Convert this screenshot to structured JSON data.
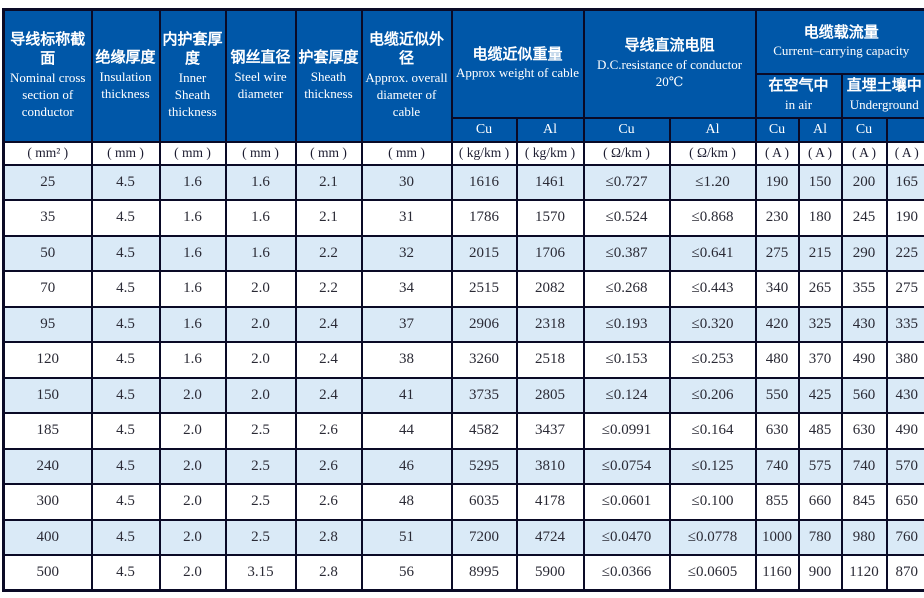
{
  "colors": {
    "header_bg": "#0057a8",
    "header_text": "#ffffff",
    "border": "#0a0a26",
    "row_alt_bg": "#daeaf7",
    "row_bg": "#ffffff",
    "data_text": "#2a2a35"
  },
  "table": {
    "header": {
      "simple_columns": [
        {
          "zh": "导线标称截面",
          "en": "Nominal cross section of conductor"
        },
        {
          "zh": "绝缘厚度",
          "en": "Insulation thickness"
        },
        {
          "zh": "内护套厚度",
          "en": "Inner Sheath thickness"
        },
        {
          "zh": "钢丝直径",
          "en": "Steel wire diameter"
        },
        {
          "zh": "护套厚度",
          "en": "Sheath thickness"
        },
        {
          "zh": "电缆近似外径",
          "en": "Approx. overall diameter of cable"
        }
      ],
      "weight_group": {
        "zh": "电缆近似重量",
        "en": "Approx weight of cable",
        "sub": [
          "Cu",
          "Al"
        ]
      },
      "resistance_group": {
        "zh": "导线直流电阻",
        "en": "D.C.resistance of conductor",
        "temp": "20℃",
        "sub": [
          "Cu",
          "Al"
        ]
      },
      "capacity_group": {
        "zh": "电缆载流量",
        "en": "Current–carrying capacity",
        "air": {
          "zh": "在空气中",
          "en": "in air"
        },
        "underground": {
          "zh": "直埋土壤中",
          "en": "Underground"
        },
        "sub": [
          "Cu",
          "Al",
          "Cu",
          ""
        ]
      }
    },
    "units": [
      "( mm² )",
      "( mm )",
      "( mm )",
      "( mm )",
      "( mm )",
      "( mm )",
      "( kg/km )",
      "( kg/km )",
      "( Ω/km )",
      "( Ω/km )",
      "( A )",
      "( A )",
      "( A )",
      "( A )"
    ],
    "rows": [
      [
        "25",
        "4.5",
        "1.6",
        "1.6",
        "2.1",
        "30",
        "1616",
        "1461",
        "≤0.727",
        "≤1.20",
        "190",
        "150",
        "200",
        "165"
      ],
      [
        "35",
        "4.5",
        "1.6",
        "1.6",
        "2.1",
        "31",
        "1786",
        "1570",
        "≤0.524",
        "≤0.868",
        "230",
        "180",
        "245",
        "190"
      ],
      [
        "50",
        "4.5",
        "1.6",
        "1.6",
        "2.2",
        "32",
        "2015",
        "1706",
        "≤0.387",
        "≤0.641",
        "275",
        "215",
        "290",
        "225"
      ],
      [
        "70",
        "4.5",
        "1.6",
        "2.0",
        "2.2",
        "34",
        "2515",
        "2082",
        "≤0.268",
        "≤0.443",
        "340",
        "265",
        "355",
        "275"
      ],
      [
        "95",
        "4.5",
        "1.6",
        "2.0",
        "2.4",
        "37",
        "2906",
        "2318",
        "≤0.193",
        "≤0.320",
        "420",
        "325",
        "430",
        "335"
      ],
      [
        "120",
        "4.5",
        "1.6",
        "2.0",
        "2.4",
        "38",
        "3260",
        "2518",
        "≤0.153",
        "≤0.253",
        "480",
        "370",
        "490",
        "380"
      ],
      [
        "150",
        "4.5",
        "2.0",
        "2.0",
        "2.4",
        "41",
        "3735",
        "2805",
        "≤0.124",
        "≤0.206",
        "550",
        "425",
        "560",
        "430"
      ],
      [
        "185",
        "4.5",
        "2.0",
        "2.5",
        "2.6",
        "44",
        "4582",
        "3437",
        "≤0.0991",
        "≤0.164",
        "630",
        "485",
        "630",
        "490"
      ],
      [
        "240",
        "4.5",
        "2.0",
        "2.5",
        "2.6",
        "46",
        "5295",
        "3810",
        "≤0.0754",
        "≤0.125",
        "740",
        "575",
        "740",
        "570"
      ],
      [
        "300",
        "4.5",
        "2.0",
        "2.5",
        "2.6",
        "48",
        "6035",
        "4178",
        "≤0.0601",
        "≤0.100",
        "855",
        "660",
        "845",
        "650"
      ],
      [
        "400",
        "4.5",
        "2.0",
        "2.5",
        "2.8",
        "51",
        "7200",
        "4724",
        "≤0.0470",
        "≤0.0778",
        "1000",
        "780",
        "980",
        "760"
      ],
      [
        "500",
        "4.5",
        "2.0",
        "3.15",
        "2.8",
        "56",
        "8995",
        "5900",
        "≤0.0366",
        "≤0.0605",
        "1160",
        "900",
        "1120",
        "870"
      ]
    ]
  }
}
